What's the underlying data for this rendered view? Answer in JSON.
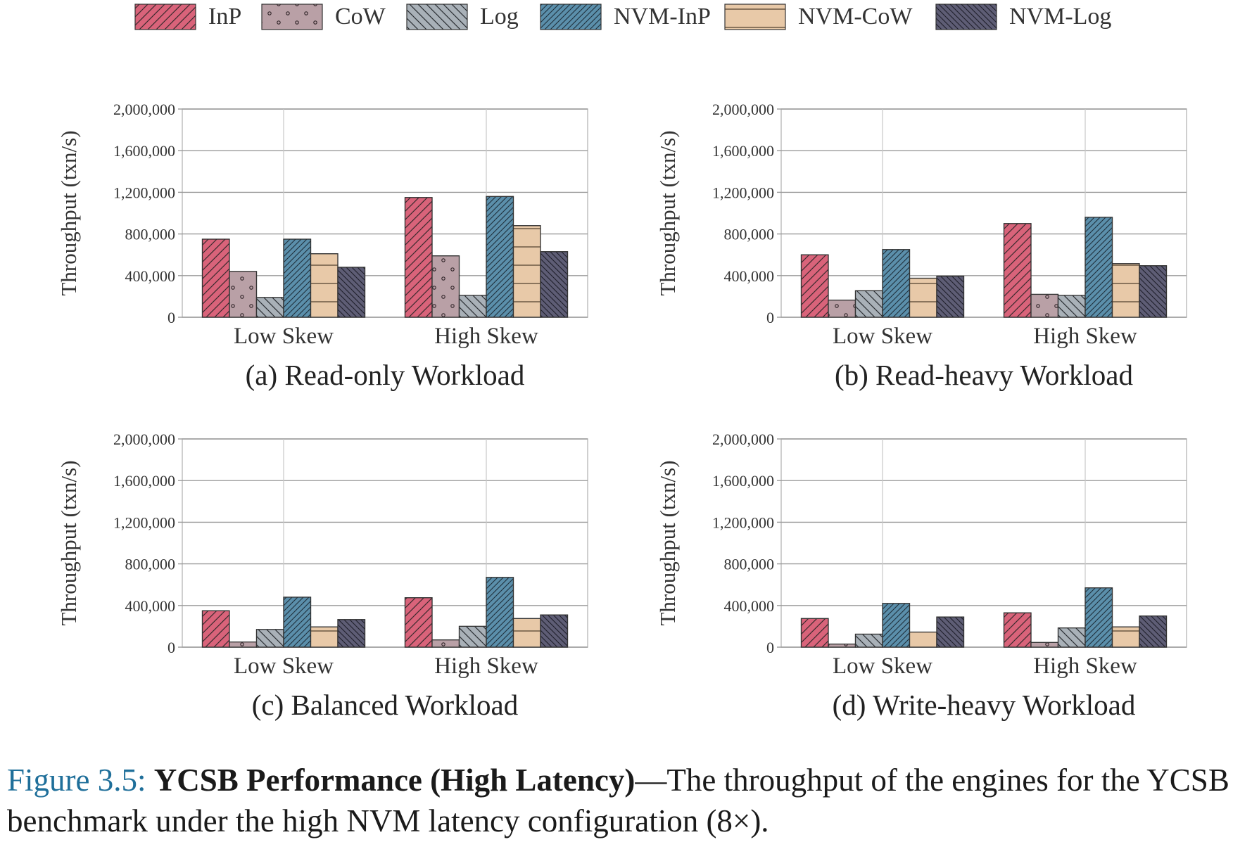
{
  "chart_data": [
    {
      "type": "bar",
      "title": "(a) Read-only Workload",
      "ylabel": "Throughput (txn/s)",
      "categories": [
        "Low Skew",
        "High Skew"
      ],
      "ylim": [
        0,
        2000000
      ],
      "yticks": [
        "0",
        "400,000",
        "800,000",
        "1,200,000",
        "1,600,000",
        "2,000,000"
      ],
      "series": [
        {
          "name": "InP",
          "values": [
            750000,
            1150000
          ]
        },
        {
          "name": "CoW",
          "values": [
            440000,
            590000
          ]
        },
        {
          "name": "Log",
          "values": [
            190000,
            210000
          ]
        },
        {
          "name": "NVM-InP",
          "values": [
            750000,
            1160000
          ]
        },
        {
          "name": "NVM-CoW",
          "values": [
            610000,
            880000
          ]
        },
        {
          "name": "NVM-Log",
          "values": [
            480000,
            630000
          ]
        }
      ]
    },
    {
      "type": "bar",
      "title": "(b) Read-heavy Workload",
      "ylabel": "Throughput (txn/s)",
      "categories": [
        "Low Skew",
        "High Skew"
      ],
      "ylim": [
        0,
        2000000
      ],
      "yticks": [
        "0",
        "400,000",
        "800,000",
        "1,200,000",
        "1,600,000",
        "2,000,000"
      ],
      "series": [
        {
          "name": "InP",
          "values": [
            600000,
            900000
          ]
        },
        {
          "name": "CoW",
          "values": [
            165000,
            220000
          ]
        },
        {
          "name": "Log",
          "values": [
            255000,
            210000
          ]
        },
        {
          "name": "NVM-InP",
          "values": [
            650000,
            960000
          ]
        },
        {
          "name": "NVM-CoW",
          "values": [
            375000,
            515000
          ]
        },
        {
          "name": "NVM-Log",
          "values": [
            395000,
            495000
          ]
        }
      ]
    },
    {
      "type": "bar",
      "title": "(c) Balanced Workload",
      "ylabel": "Throughput (txn/s)",
      "categories": [
        "Low Skew",
        "High Skew"
      ],
      "ylim": [
        0,
        2000000
      ],
      "yticks": [
        "0",
        "400,000",
        "800,000",
        "1,200,000",
        "1,600,000",
        "2,000,000"
      ],
      "series": [
        {
          "name": "InP",
          "values": [
            350000,
            475000
          ]
        },
        {
          "name": "CoW",
          "values": [
            50000,
            70000
          ]
        },
        {
          "name": "Log",
          "values": [
            170000,
            200000
          ]
        },
        {
          "name": "NVM-InP",
          "values": [
            480000,
            670000
          ]
        },
        {
          "name": "NVM-CoW",
          "values": [
            195000,
            275000
          ]
        },
        {
          "name": "NVM-Log",
          "values": [
            265000,
            310000
          ]
        }
      ]
    },
    {
      "type": "bar",
      "title": "(d) Write-heavy Workload",
      "ylabel": "Throughput (txn/s)",
      "categories": [
        "Low Skew",
        "High Skew"
      ],
      "ylim": [
        0,
        2000000
      ],
      "yticks": [
        "0",
        "400,000",
        "800,000",
        "1,200,000",
        "1,600,000",
        "2,000,000"
      ],
      "series": [
        {
          "name": "InP",
          "values": [
            275000,
            330000
          ]
        },
        {
          "name": "CoW",
          "values": [
            30000,
            45000
          ]
        },
        {
          "name": "Log",
          "values": [
            125000,
            185000
          ]
        },
        {
          "name": "NVM-InP",
          "values": [
            420000,
            570000
          ]
        },
        {
          "name": "NVM-CoW",
          "values": [
            145000,
            195000
          ]
        },
        {
          "name": "NVM-Log",
          "values": [
            290000,
            300000
          ]
        }
      ]
    }
  ],
  "legend": {
    "placement": "top-center",
    "items": [
      {
        "name": "InP",
        "color": "#d9637a",
        "pattern": "hatch-forward"
      },
      {
        "name": "CoW",
        "color": "#b9a0a6",
        "pattern": "dots"
      },
      {
        "name": "Log",
        "color": "#a9b1b8",
        "pattern": "hatch-back"
      },
      {
        "name": "NVM-InP",
        "color": "#5b8fab",
        "pattern": "hatch-forward-dense"
      },
      {
        "name": "NVM-CoW",
        "color": "#e8c9a8",
        "pattern": "horizontal"
      },
      {
        "name": "NVM-Log",
        "color": "#5e5d75",
        "pattern": "hatch-back-dense"
      }
    ]
  },
  "caption": {
    "number": "Figure 3.5:",
    "title": "YCSB Performance (High Latency)",
    "text": "—The throughput of the engines for the YCSB benchmark under the high NVM latency configuration (8×)."
  }
}
